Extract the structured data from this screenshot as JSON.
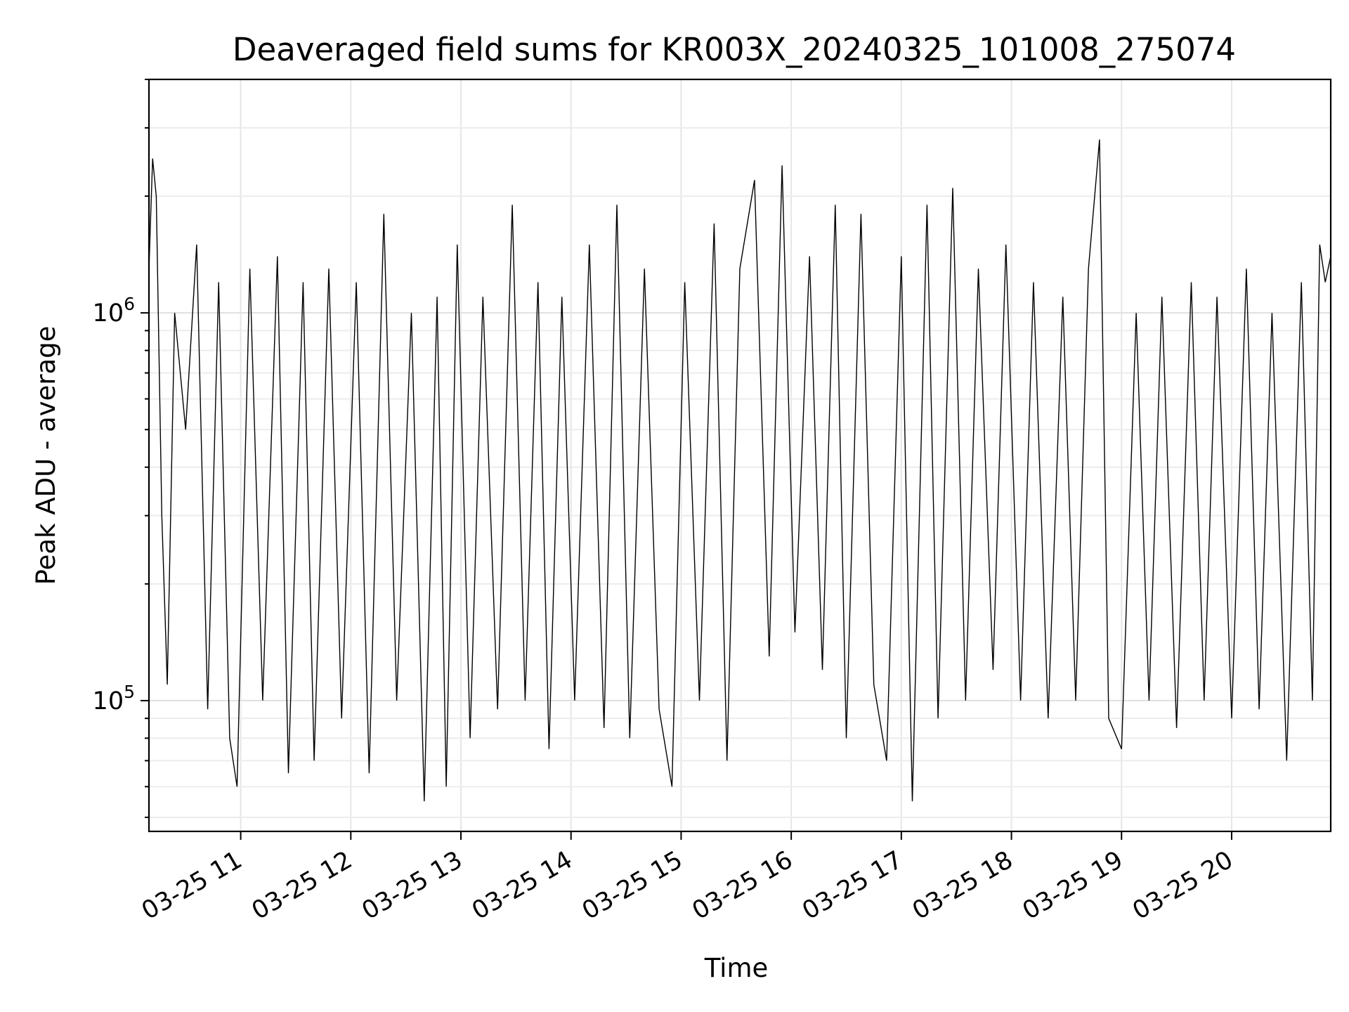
{
  "chart_data": {
    "type": "line",
    "title": "Deaveraged field sums for KR003X_20240325_101008_275074",
    "xlabel": "Time",
    "ylabel": "Peak ADU - average",
    "y_scale": "log",
    "ylim": [
      46000,
      4000000
    ],
    "xlim": [
      "2024-03-25 10:10",
      "2024-03-25 20:54"
    ],
    "grid": true,
    "x_ticks": [
      "03-25 11",
      "03-25 12",
      "03-25 13",
      "03-25 14",
      "03-25 15",
      "03-25 16",
      "03-25 17",
      "03-25 18",
      "03-25 19",
      "03-25 20"
    ],
    "y_ticks": [
      {
        "base": "10",
        "exp": "5",
        "value": 100000
      },
      {
        "base": "10",
        "exp": "6",
        "value": 1000000
      }
    ],
    "x_tick_values": [
      "2024-03-25 11:00",
      "2024-03-25 12:00",
      "2024-03-25 13:00",
      "2024-03-25 14:00",
      "2024-03-25 15:00",
      "2024-03-25 16:00",
      "2024-03-25 17:00",
      "2024-03-25 18:00",
      "2024-03-25 19:00",
      "2024-03-25 20:00"
    ],
    "series": [
      {
        "color": "#000000",
        "points": [
          [
            "2024-03-25 10:10",
            1300000
          ],
          [
            "2024-03-25 10:12",
            2500000
          ],
          [
            "2024-03-25 10:14",
            2000000
          ],
          [
            "2024-03-25 10:17",
            300000
          ],
          [
            "2024-03-25 10:20",
            110000
          ],
          [
            "2024-03-25 10:24",
            1000000
          ],
          [
            "2024-03-25 10:30",
            500000
          ],
          [
            "2024-03-25 10:36",
            1500000
          ],
          [
            "2024-03-25 10:42",
            95000
          ],
          [
            "2024-03-25 10:48",
            1200000
          ],
          [
            "2024-03-25 10:54",
            80000
          ],
          [
            "2024-03-25 10:58",
            60000
          ],
          [
            "2024-03-25 11:05",
            1300000
          ],
          [
            "2024-03-25 11:12",
            100000
          ],
          [
            "2024-03-25 11:20",
            1400000
          ],
          [
            "2024-03-25 11:26",
            65000
          ],
          [
            "2024-03-25 11:34",
            1200000
          ],
          [
            "2024-03-25 11:40",
            70000
          ],
          [
            "2024-03-25 11:48",
            1300000
          ],
          [
            "2024-03-25 11:55",
            90000
          ],
          [
            "2024-03-25 12:03",
            1200000
          ],
          [
            "2024-03-25 12:10",
            65000
          ],
          [
            "2024-03-25 12:18",
            1800000
          ],
          [
            "2024-03-25 12:25",
            100000
          ],
          [
            "2024-03-25 12:33",
            1000000
          ],
          [
            "2024-03-25 12:40",
            55000
          ],
          [
            "2024-03-25 12:47",
            1100000
          ],
          [
            "2024-03-25 12:52",
            60000
          ],
          [
            "2024-03-25 12:58",
            1500000
          ],
          [
            "2024-03-25 13:05",
            80000
          ],
          [
            "2024-03-25 13:12",
            1100000
          ],
          [
            "2024-03-25 13:20",
            95000
          ],
          [
            "2024-03-25 13:28",
            1900000
          ],
          [
            "2024-03-25 13:35",
            100000
          ],
          [
            "2024-03-25 13:42",
            1200000
          ],
          [
            "2024-03-25 13:48",
            75000
          ],
          [
            "2024-03-25 13:55",
            1100000
          ],
          [
            "2024-03-25 14:02",
            100000
          ],
          [
            "2024-03-25 14:10",
            1500000
          ],
          [
            "2024-03-25 14:18",
            85000
          ],
          [
            "2024-03-25 14:25",
            1900000
          ],
          [
            "2024-03-25 14:32",
            80000
          ],
          [
            "2024-03-25 14:40",
            1300000
          ],
          [
            "2024-03-25 14:48",
            95000
          ],
          [
            "2024-03-25 14:55",
            60000
          ],
          [
            "2024-03-25 15:02",
            1200000
          ],
          [
            "2024-03-25 15:10",
            100000
          ],
          [
            "2024-03-25 15:18",
            1700000
          ],
          [
            "2024-03-25 15:25",
            70000
          ],
          [
            "2024-03-25 15:32",
            1300000
          ],
          [
            "2024-03-25 15:40",
            2200000
          ],
          [
            "2024-03-25 15:48",
            130000
          ],
          [
            "2024-03-25 15:55",
            2400000
          ],
          [
            "2024-03-25 16:02",
            150000
          ],
          [
            "2024-03-25 16:10",
            1400000
          ],
          [
            "2024-03-25 16:17",
            120000
          ],
          [
            "2024-03-25 16:24",
            1900000
          ],
          [
            "2024-03-25 16:30",
            80000
          ],
          [
            "2024-03-25 16:38",
            1800000
          ],
          [
            "2024-03-25 16:45",
            110000
          ],
          [
            "2024-03-25 16:52",
            70000
          ],
          [
            "2024-03-25 17:00",
            1400000
          ],
          [
            "2024-03-25 17:06",
            55000
          ],
          [
            "2024-03-25 17:14",
            1900000
          ],
          [
            "2024-03-25 17:20",
            90000
          ],
          [
            "2024-03-25 17:28",
            2100000
          ],
          [
            "2024-03-25 17:35",
            100000
          ],
          [
            "2024-03-25 17:42",
            1300000
          ],
          [
            "2024-03-25 17:50",
            120000
          ],
          [
            "2024-03-25 17:57",
            1500000
          ],
          [
            "2024-03-25 18:05",
            100000
          ],
          [
            "2024-03-25 18:12",
            1200000
          ],
          [
            "2024-03-25 18:20",
            90000
          ],
          [
            "2024-03-25 18:28",
            1100000
          ],
          [
            "2024-03-25 18:35",
            100000
          ],
          [
            "2024-03-25 18:42",
            1300000
          ],
          [
            "2024-03-25 18:48",
            2800000
          ],
          [
            "2024-03-25 18:53",
            90000
          ],
          [
            "2024-03-25 19:00",
            75000
          ],
          [
            "2024-03-25 19:08",
            1000000
          ],
          [
            "2024-03-25 19:15",
            100000
          ],
          [
            "2024-03-25 19:22",
            1100000
          ],
          [
            "2024-03-25 19:30",
            85000
          ],
          [
            "2024-03-25 19:38",
            1200000
          ],
          [
            "2024-03-25 19:45",
            100000
          ],
          [
            "2024-03-25 19:52",
            1100000
          ],
          [
            "2024-03-25 20:00",
            90000
          ],
          [
            "2024-03-25 20:08",
            1300000
          ],
          [
            "2024-03-25 20:15",
            95000
          ],
          [
            "2024-03-25 20:22",
            1000000
          ],
          [
            "2024-03-25 20:30",
            70000
          ],
          [
            "2024-03-25 20:38",
            1200000
          ],
          [
            "2024-03-25 20:44",
            100000
          ],
          [
            "2024-03-25 20:48",
            1500000
          ],
          [
            "2024-03-25 20:51",
            1200000
          ],
          [
            "2024-03-25 20:54",
            1400000
          ]
        ]
      }
    ]
  }
}
